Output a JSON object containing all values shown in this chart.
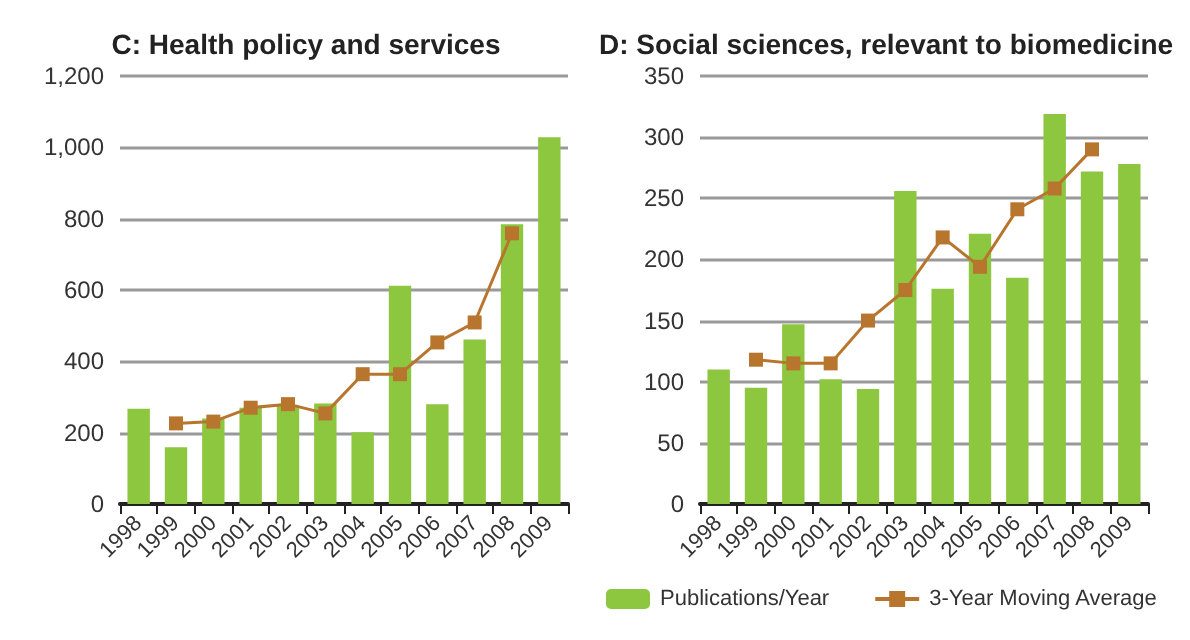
{
  "chart_data": [
    {
      "type": "bar",
      "title": "C: Health policy and services",
      "categories": [
        "1998",
        "1999",
        "2000",
        "2001",
        "2002",
        "2003",
        "2004",
        "2005",
        "2006",
        "2007",
        "2008",
        "2009"
      ],
      "series": [
        {
          "color": "#8dc63f",
          "values": [
            267,
            159,
            240,
            270,
            276,
            282,
            201,
            612,
            280,
            461,
            784,
            1028
          ]
        },
        {
          "type": "line",
          "color": "#b8752e",
          "values": [
            null,
            226,
            231,
            270,
            280,
            254,
            364,
            364,
            453,
            509,
            759,
            null
          ]
        }
      ],
      "ylim": [
        0,
        1200
      ],
      "yticks": [
        0,
        {
          "value": 200,
          "label": "200"
        },
        {
          "value": 400,
          "label": "400"
        },
        {
          "value": 600,
          "label": "600"
        },
        {
          "value": 800,
          "label": "800"
        },
        {
          "value": 1000,
          "label": "1,000"
        },
        {
          "value": 1200,
          "label": "1,200"
        }
      ],
      "grid": "y",
      "legend": false,
      "marker": "square",
      "line_style": "solid"
    },
    {
      "type": "bar",
      "title": "D: Social sciences, relevant to biomedicine",
      "categories": [
        "1998",
        "1999",
        "2000",
        "2001",
        "2002",
        "2003",
        "2004",
        "2005",
        "2006",
        "2007",
        "2008",
        "2009"
      ],
      "series": [
        {
          "name": "Publications/Year",
          "color": "#8dc63f",
          "values": [
            110,
            95,
            147,
            102,
            94,
            256,
            176,
            221,
            185,
            319,
            272,
            278
          ]
        },
        {
          "name": "3-Year Moving Average",
          "type": "line",
          "color": "#b8752e",
          "values": [
            null,
            118,
            115,
            115,
            150,
            175,
            218,
            194,
            241,
            258,
            290,
            null
          ]
        }
      ],
      "ylim": [
        0,
        350
      ],
      "yticks": [
        0,
        50,
        100,
        150,
        200,
        250,
        300,
        350
      ],
      "grid": "y",
      "legend": "bottom",
      "marker": "square",
      "line_style": "solid"
    }
  ]
}
